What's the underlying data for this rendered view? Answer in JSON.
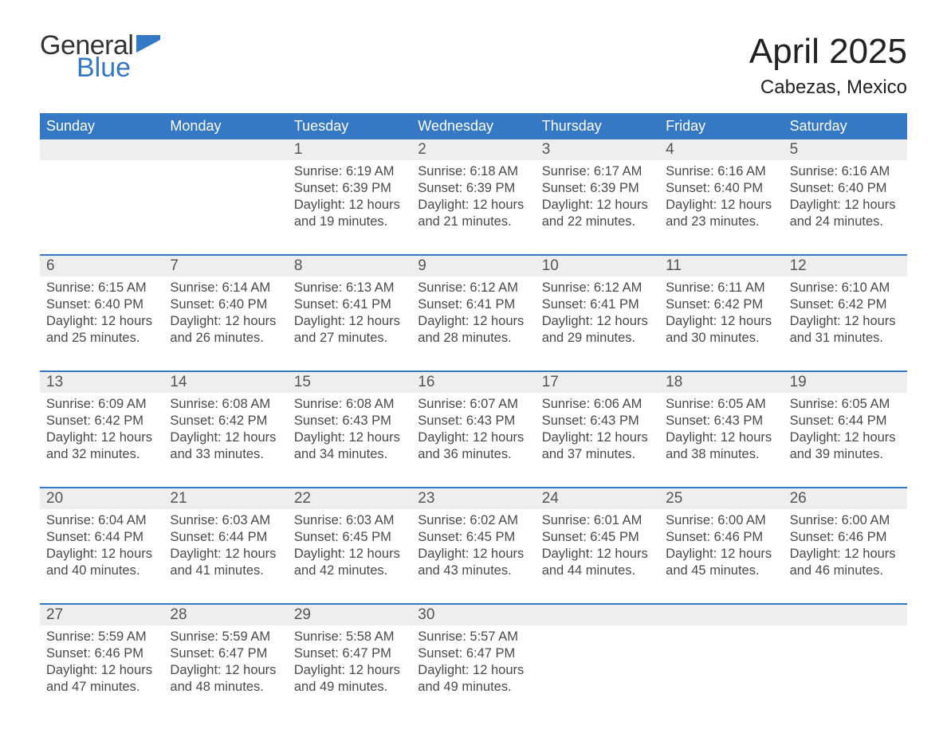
{
  "brand": {
    "part1": "General",
    "part2": "Blue"
  },
  "title": "April 2025",
  "location": "Cabezas, Mexico",
  "colors": {
    "header_blue": "#3578c4",
    "light_gray": "#eeeeee",
    "text_dark": "#333333"
  },
  "days_of_week": [
    "Sunday",
    "Monday",
    "Tuesday",
    "Wednesday",
    "Thursday",
    "Friday",
    "Saturday"
  ],
  "labels": {
    "sunrise": "Sunrise:",
    "sunset": "Sunset:",
    "daylight": "Daylight:"
  },
  "weeks": [
    [
      null,
      null,
      {
        "n": "1",
        "sunrise": "6:19 AM",
        "sunset": "6:39 PM",
        "daylight": "12 hours and 19 minutes."
      },
      {
        "n": "2",
        "sunrise": "6:18 AM",
        "sunset": "6:39 PM",
        "daylight": "12 hours and 21 minutes."
      },
      {
        "n": "3",
        "sunrise": "6:17 AM",
        "sunset": "6:39 PM",
        "daylight": "12 hours and 22 minutes."
      },
      {
        "n": "4",
        "sunrise": "6:16 AM",
        "sunset": "6:40 PM",
        "daylight": "12 hours and 23 minutes."
      },
      {
        "n": "5",
        "sunrise": "6:16 AM",
        "sunset": "6:40 PM",
        "daylight": "12 hours and 24 minutes."
      }
    ],
    [
      {
        "n": "6",
        "sunrise": "6:15 AM",
        "sunset": "6:40 PM",
        "daylight": "12 hours and 25 minutes."
      },
      {
        "n": "7",
        "sunrise": "6:14 AM",
        "sunset": "6:40 PM",
        "daylight": "12 hours and 26 minutes."
      },
      {
        "n": "8",
        "sunrise": "6:13 AM",
        "sunset": "6:41 PM",
        "daylight": "12 hours and 27 minutes."
      },
      {
        "n": "9",
        "sunrise": "6:12 AM",
        "sunset": "6:41 PM",
        "daylight": "12 hours and 28 minutes."
      },
      {
        "n": "10",
        "sunrise": "6:12 AM",
        "sunset": "6:41 PM",
        "daylight": "12 hours and 29 minutes."
      },
      {
        "n": "11",
        "sunrise": "6:11 AM",
        "sunset": "6:42 PM",
        "daylight": "12 hours and 30 minutes."
      },
      {
        "n": "12",
        "sunrise": "6:10 AM",
        "sunset": "6:42 PM",
        "daylight": "12 hours and 31 minutes."
      }
    ],
    [
      {
        "n": "13",
        "sunrise": "6:09 AM",
        "sunset": "6:42 PM",
        "daylight": "12 hours and 32 minutes."
      },
      {
        "n": "14",
        "sunrise": "6:08 AM",
        "sunset": "6:42 PM",
        "daylight": "12 hours and 33 minutes."
      },
      {
        "n": "15",
        "sunrise": "6:08 AM",
        "sunset": "6:43 PM",
        "daylight": "12 hours and 34 minutes."
      },
      {
        "n": "16",
        "sunrise": "6:07 AM",
        "sunset": "6:43 PM",
        "daylight": "12 hours and 36 minutes."
      },
      {
        "n": "17",
        "sunrise": "6:06 AM",
        "sunset": "6:43 PM",
        "daylight": "12 hours and 37 minutes."
      },
      {
        "n": "18",
        "sunrise": "6:05 AM",
        "sunset": "6:43 PM",
        "daylight": "12 hours and 38 minutes."
      },
      {
        "n": "19",
        "sunrise": "6:05 AM",
        "sunset": "6:44 PM",
        "daylight": "12 hours and 39 minutes."
      }
    ],
    [
      {
        "n": "20",
        "sunrise": "6:04 AM",
        "sunset": "6:44 PM",
        "daylight": "12 hours and 40 minutes."
      },
      {
        "n": "21",
        "sunrise": "6:03 AM",
        "sunset": "6:44 PM",
        "daylight": "12 hours and 41 minutes."
      },
      {
        "n": "22",
        "sunrise": "6:03 AM",
        "sunset": "6:45 PM",
        "daylight": "12 hours and 42 minutes."
      },
      {
        "n": "23",
        "sunrise": "6:02 AM",
        "sunset": "6:45 PM",
        "daylight": "12 hours and 43 minutes."
      },
      {
        "n": "24",
        "sunrise": "6:01 AM",
        "sunset": "6:45 PM",
        "daylight": "12 hours and 44 minutes."
      },
      {
        "n": "25",
        "sunrise": "6:00 AM",
        "sunset": "6:46 PM",
        "daylight": "12 hours and 45 minutes."
      },
      {
        "n": "26",
        "sunrise": "6:00 AM",
        "sunset": "6:46 PM",
        "daylight": "12 hours and 46 minutes."
      }
    ],
    [
      {
        "n": "27",
        "sunrise": "5:59 AM",
        "sunset": "6:46 PM",
        "daylight": "12 hours and 47 minutes."
      },
      {
        "n": "28",
        "sunrise": "5:59 AM",
        "sunset": "6:47 PM",
        "daylight": "12 hours and 48 minutes."
      },
      {
        "n": "29",
        "sunrise": "5:58 AM",
        "sunset": "6:47 PM",
        "daylight": "12 hours and 49 minutes."
      },
      {
        "n": "30",
        "sunrise": "5:57 AM",
        "sunset": "6:47 PM",
        "daylight": "12 hours and 49 minutes."
      },
      null,
      null,
      null
    ]
  ]
}
